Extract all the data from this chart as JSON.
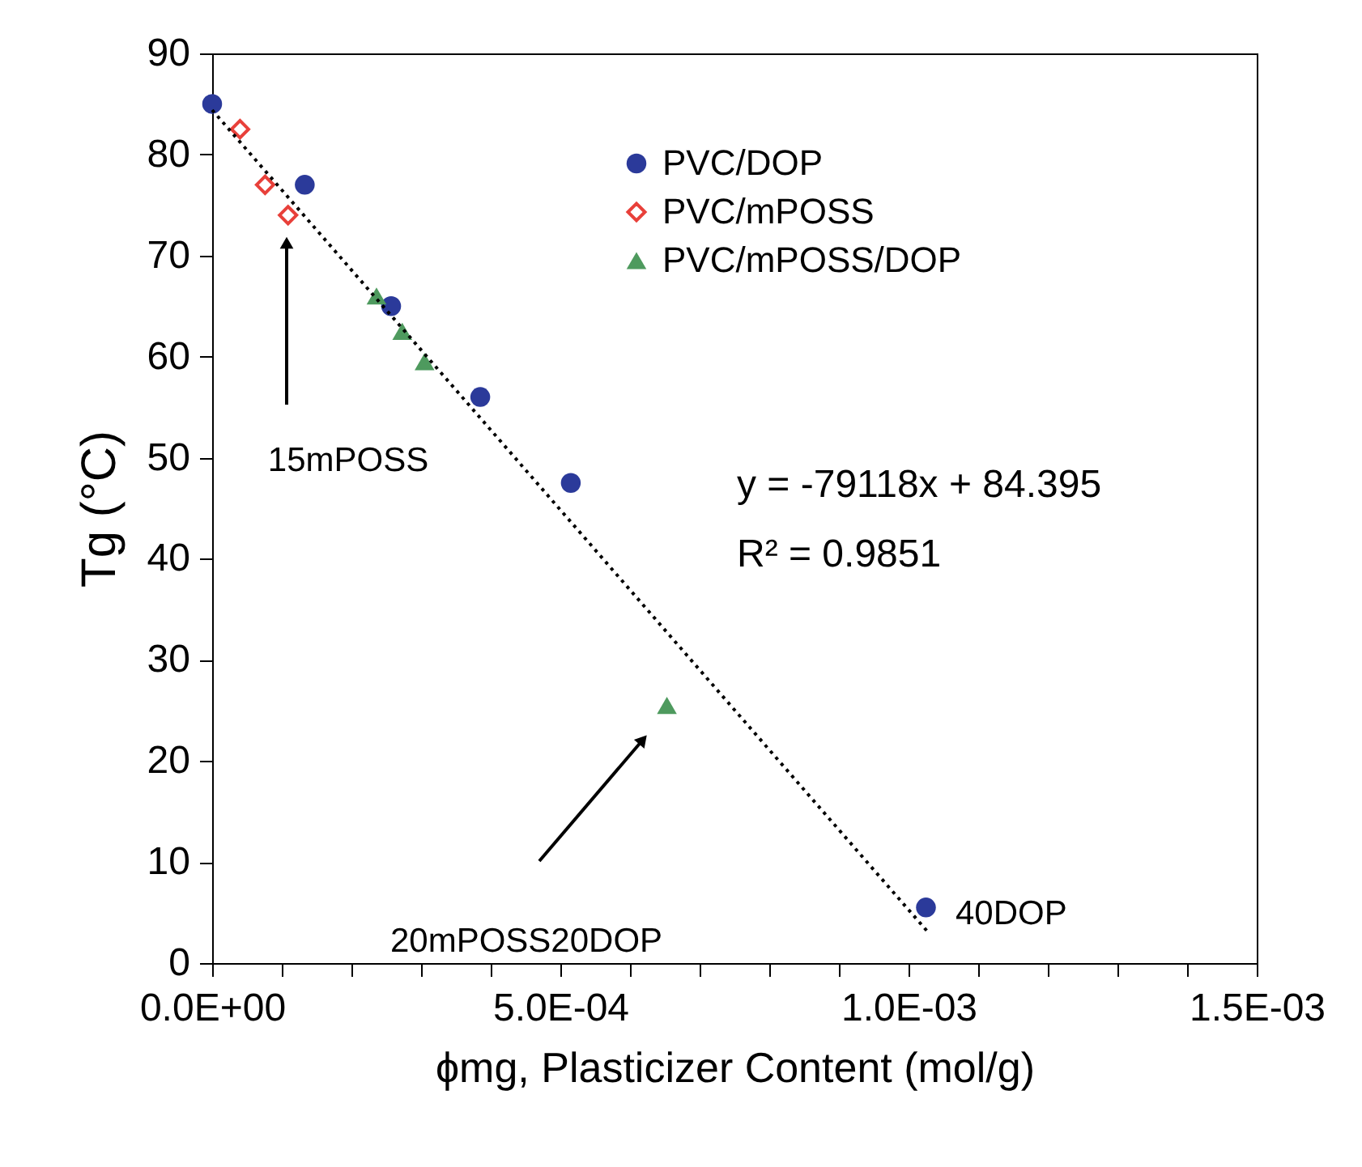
{
  "chart_data": {
    "type": "scatter",
    "xlabel": "ϕmg, Plasticizer Content (mol/g)",
    "ylabel": "Tg (°C)",
    "xlim": [
      0,
      0.0015
    ],
    "ylim": [
      0,
      90
    ],
    "xticks": [
      {
        "value": 0,
        "label": "0.0E+00"
      },
      {
        "value": 0.0001,
        "label": null
      },
      {
        "value": 0.0002,
        "label": null
      },
      {
        "value": 0.0003,
        "label": null
      },
      {
        "value": 0.0004,
        "label": null
      },
      {
        "value": 0.0005,
        "label": "5.0E-04"
      },
      {
        "value": 0.0006,
        "label": null
      },
      {
        "value": 0.0007,
        "label": null
      },
      {
        "value": 0.0008,
        "label": null
      },
      {
        "value": 0.0009,
        "label": null
      },
      {
        "value": 0.001,
        "label": "1.0E-03"
      },
      {
        "value": 0.0011,
        "label": null
      },
      {
        "value": 0.0012,
        "label": null
      },
      {
        "value": 0.0013,
        "label": null
      },
      {
        "value": 0.0014,
        "label": null
      },
      {
        "value": 0.0015,
        "label": "1.5E-03"
      }
    ],
    "yticks": [
      0,
      10,
      20,
      30,
      40,
      50,
      60,
      70,
      80,
      90
    ],
    "grid": false,
    "legend": "top right",
    "series": [
      {
        "name": "PVC/DOP",
        "marker": "circle",
        "color": "#2b3a9a",
        "x": [
          0,
          0.000133,
          0.000257,
          0.000385,
          0.000515,
          0.001025
        ],
        "values": [
          85,
          77,
          65,
          56,
          47.5,
          5.5
        ]
      },
      {
        "name": "PVC/mPOSS",
        "marker": "diamond",
        "color": "#e8403a",
        "x": [
          4e-05,
          7.6e-05,
          0.000109
        ],
        "values": [
          82.5,
          77,
          74
        ]
      },
      {
        "name": "PVC/mPOSS/DOP",
        "marker": "triangle",
        "color": "#4e9a5e",
        "x": [
          0.000236,
          0.000273,
          0.000305,
          0.000653
        ],
        "values": [
          66,
          62.5,
          59.5,
          25.5
        ]
      },
      {
        "type": "line",
        "marker": "none",
        "line_style": "dotted",
        "color": "#000000",
        "x": [
          0,
          0.00103
        ],
        "values": [
          84.4,
          2.9
        ]
      }
    ],
    "annotations": [
      "15mPOSS",
      "20mPOSS20DOP",
      "40DOP",
      "y = -79118x + 84.395",
      "R² = 0.9851"
    ]
  }
}
